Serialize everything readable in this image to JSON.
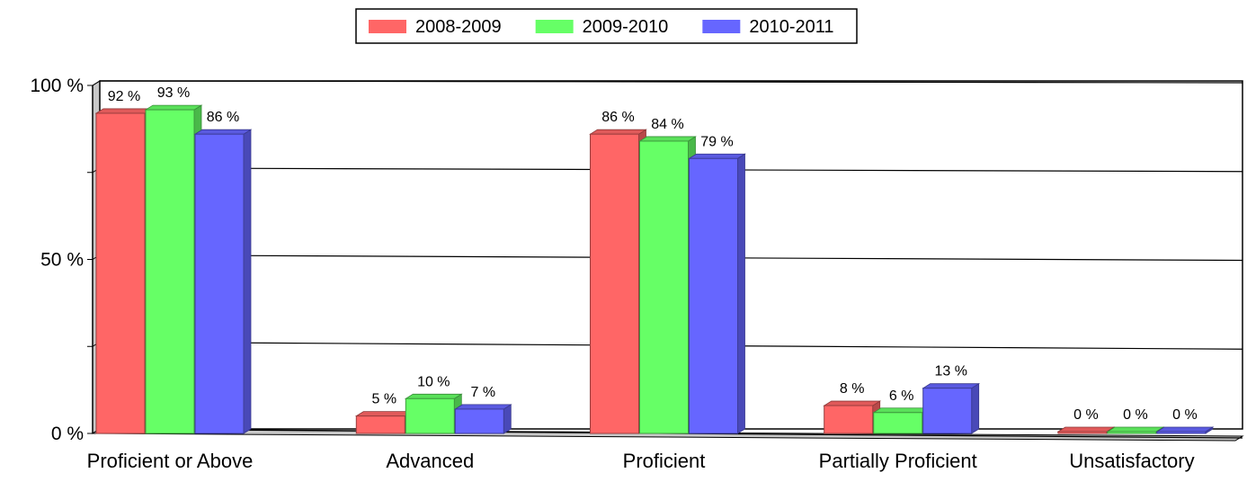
{
  "chart_data": {
    "type": "bar",
    "title": "",
    "xlabel": "",
    "ylabel": "",
    "categories": [
      "Proficient or Above",
      "Advanced",
      "Proficient",
      "Partially Proficient",
      "Unsatisfactory"
    ],
    "series": [
      {
        "name": "2008-2009",
        "color": "#ff6666",
        "values": [
          92,
          5,
          86,
          8,
          0
        ]
      },
      {
        "name": "2009-2010",
        "color": "#66ff66",
        "values": [
          93,
          10,
          84,
          6,
          0
        ]
      },
      {
        "name": "2010-2011",
        "color": "#6666ff",
        "values": [
          86,
          7,
          79,
          13,
          0
        ]
      }
    ],
    "ylim": [
      0,
      100
    ],
    "y_ticks": [
      {
        "value": 0,
        "label": "0 %"
      },
      {
        "value": 25,
        "label": ""
      },
      {
        "value": 50,
        "label": "50 %"
      },
      {
        "value": 75,
        "label": ""
      },
      {
        "value": 100,
        "label": "100 %"
      }
    ],
    "value_suffix": " %",
    "grid": true,
    "legend_position": "top-center",
    "style": "3d-bars"
  }
}
